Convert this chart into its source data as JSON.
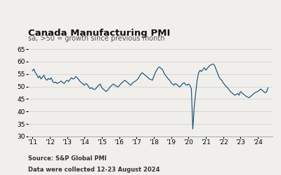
{
  "title": "Canada Manufacturing PMI",
  "subtitle": "sa, >50 = growth since previous month",
  "source_line1": "Source: S&P Global PMI",
  "source_line2": "Data were collected 12-23 August 2024",
  "line_color": "#1a5276",
  "background_color": "#f0efeb",
  "ylim": [
    30,
    65
  ],
  "yticks": [
    30,
    35,
    40,
    45,
    50,
    55,
    60,
    65
  ],
  "xtick_labels": [
    "'11",
    "'12",
    "'13",
    "'14",
    "'15",
    "'16",
    "'17",
    "'18",
    "'19",
    "'20",
    "'21",
    "'22",
    "'23",
    "'24"
  ],
  "title_fontsize": 9.5,
  "subtitle_fontsize": 7,
  "tick_fontsize": 6.5,
  "source_fontsize": 6,
  "pmi_data": [
    56.3,
    57.0,
    55.5,
    54.8,
    53.5,
    54.2,
    53.0,
    53.8,
    54.5,
    53.0,
    52.5,
    53.2,
    52.8,
    53.5,
    52.0,
    51.5,
    51.8,
    51.2,
    51.5,
    51.8,
    52.2,
    51.5,
    51.2,
    52.0,
    52.5,
    52.0,
    52.8,
    53.5,
    53.0,
    53.2,
    54.0,
    53.5,
    52.8,
    52.0,
    51.5,
    51.0,
    50.5,
    51.2,
    50.8,
    49.8,
    49.2,
    49.5,
    49.0,
    48.8,
    49.2,
    50.0,
    50.5,
    51.0,
    49.5,
    49.0,
    48.5,
    48.0,
    48.5,
    49.2,
    50.0,
    50.5,
    51.0,
    50.5,
    50.2,
    49.8,
    50.2,
    51.0,
    51.5,
    52.0,
    52.5,
    52.0,
    51.5,
    51.0,
    50.5,
    51.2,
    51.8,
    52.0,
    52.5,
    53.0,
    54.0,
    55.0,
    55.5,
    55.0,
    54.5,
    54.0,
    53.5,
    53.0,
    52.8,
    52.5,
    54.0,
    55.5,
    56.5,
    57.5,
    57.8,
    57.2,
    56.8,
    55.5,
    54.5,
    53.8,
    53.0,
    52.5,
    51.5,
    51.0,
    50.5,
    51.2,
    50.8,
    50.2,
    49.8,
    50.5,
    51.2,
    51.5,
    50.8,
    50.5,
    51.0,
    50.5,
    49.0,
    33.0,
    42.0,
    47.5,
    52.5,
    55.5,
    56.5,
    56.0,
    56.8,
    57.5,
    56.5,
    57.2,
    58.0,
    58.5,
    58.8,
    59.0,
    58.5,
    57.0,
    55.5,
    54.0,
    53.0,
    52.5,
    51.5,
    50.8,
    50.0,
    49.5,
    48.8,
    48.0,
    47.5,
    47.0,
    46.5,
    46.8,
    47.2,
    46.5,
    48.0,
    47.5,
    47.0,
    46.5,
    46.0,
    45.8,
    45.5,
    46.0,
    46.5,
    47.0,
    47.5,
    47.8,
    48.0,
    48.5,
    49.0,
    48.5,
    48.0,
    47.5,
    47.8,
    49.5
  ]
}
